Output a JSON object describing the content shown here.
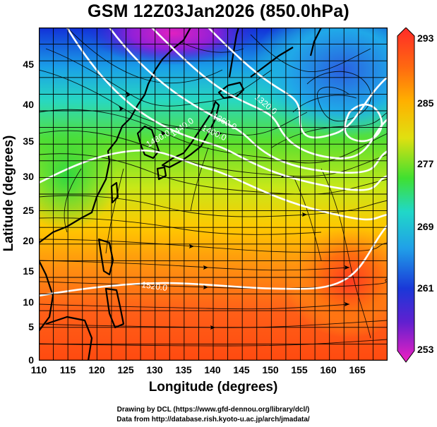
{
  "title": "GSM 12Z03Jan2026 (850.0hPa)",
  "axes": {
    "xlabel": "Longitude (degrees)",
    "ylabel": "Latitude  (degrees)",
    "x_range": [
      110,
      170
    ],
    "y_range": [
      0,
      50
    ],
    "x_ticks": [
      "110",
      "115",
      "120",
      "125",
      "130",
      "135",
      "140",
      "145",
      "150",
      "155",
      "160",
      "165"
    ],
    "y_ticks": [
      "0",
      "5",
      "10",
      "15",
      "20",
      "25",
      "30",
      "35",
      "40",
      "45"
    ]
  },
  "colorbar": {
    "min": 253,
    "max": 293,
    "tick_labels": [
      "293",
      "285",
      "277",
      "269",
      "261",
      "253"
    ]
  },
  "contour_labels": [
    "1320.0",
    "1360.0",
    "1400.0",
    "1440.0",
    "1480.0",
    "1520.0"
  ],
  "credits": {
    "line1": "Drawing by DCL (https://www.gfd-dennou.org/library/dcl/)",
    "line2": "Data from http://database.rish.kyoto-u.ac.jp/arch/jmadata/"
  },
  "colors": {
    "warm": "#ff5a14",
    "cold": "#1a20d8",
    "contour": "#ffffff",
    "streamline": "#000000"
  }
}
